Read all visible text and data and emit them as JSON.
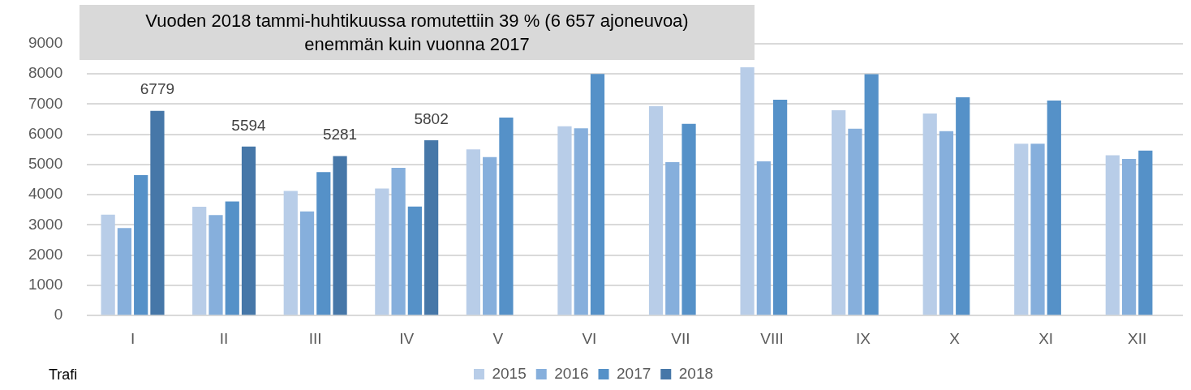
{
  "chart_data": {
    "type": "bar",
    "title": "Vuoden 2018 tammi-huhtikuussa romutettiin 39 % (6 657 ajoneuvoa) enemmän kuin vuonna 2017",
    "categories": [
      "I",
      "II",
      "III",
      "IV",
      "V",
      "VI",
      "VII",
      "VIII",
      "IX",
      "X",
      "XI",
      "XII"
    ],
    "series": [
      {
        "name": "2015",
        "color": "#b8cde8",
        "values": [
          3340,
          3600,
          4130,
          4210,
          5500,
          6270,
          6930,
          8220,
          6800,
          6690,
          5690,
          5310
        ]
      },
      {
        "name": "2016",
        "color": "#86afdc",
        "values": [
          2900,
          3330,
          3450,
          4890,
          5250,
          6200,
          5080,
          5110,
          6190,
          6110,
          5690,
          5190
        ]
      },
      {
        "name": "2017",
        "color": "#5591c8",
        "values": [
          4650,
          3780,
          4750,
          3610,
          6560,
          8000,
          6350,
          7150,
          7990,
          7230,
          7120,
          5460
        ]
      },
      {
        "name": "2018",
        "color": "#4677a8",
        "values": [
          6779,
          5594,
          5281,
          5802,
          null,
          null,
          null,
          null,
          null,
          null,
          null,
          null
        ],
        "value_labels": [
          "6779",
          "5594",
          "5281",
          "5802",
          null,
          null,
          null,
          null,
          null,
          null,
          null,
          null
        ]
      }
    ],
    "ylim": [
      0,
      9000
    ],
    "yticks": [
      0,
      1000,
      2000,
      3000,
      4000,
      5000,
      6000,
      7000,
      8000,
      9000
    ],
    "grid": "y",
    "legend": "bottom",
    "annotations": [
      "Trafi"
    ]
  }
}
